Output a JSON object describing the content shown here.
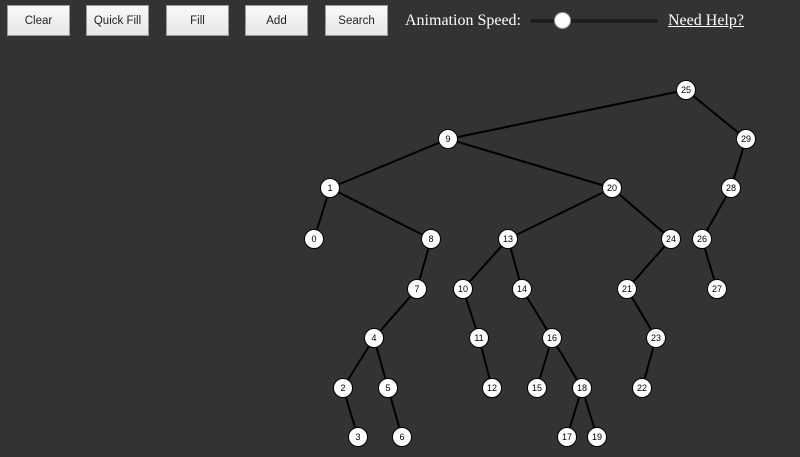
{
  "toolbar": {
    "clear": "Clear",
    "quick_fill": "Quick Fill",
    "fill": "Fill",
    "add": "Add",
    "search": "Search",
    "speed_label": "Animation Speed:",
    "speed_value": 0.25,
    "help": "Need Help?"
  },
  "colors": {
    "background": "#333333",
    "node_fill": "#ffffff",
    "edge": "#000000"
  },
  "tree": {
    "root": 25,
    "edges": [
      [
        25,
        9
      ],
      [
        25,
        29
      ],
      [
        9,
        1
      ],
      [
        9,
        20
      ],
      [
        29,
        28
      ],
      [
        1,
        0
      ],
      [
        1,
        8
      ],
      [
        20,
        13
      ],
      [
        20,
        24
      ],
      [
        28,
        26
      ],
      [
        8,
        7
      ],
      [
        13,
        10
      ],
      [
        13,
        14
      ],
      [
        24,
        21
      ],
      [
        26,
        27
      ],
      [
        7,
        4
      ],
      [
        10,
        11
      ],
      [
        14,
        16
      ],
      [
        21,
        23
      ],
      [
        4,
        2
      ],
      [
        4,
        5
      ],
      [
        11,
        12
      ],
      [
        16,
        15
      ],
      [
        16,
        18
      ],
      [
        23,
        22
      ],
      [
        2,
        3
      ],
      [
        5,
        6
      ],
      [
        18,
        17
      ],
      [
        18,
        19
      ]
    ]
  }
}
